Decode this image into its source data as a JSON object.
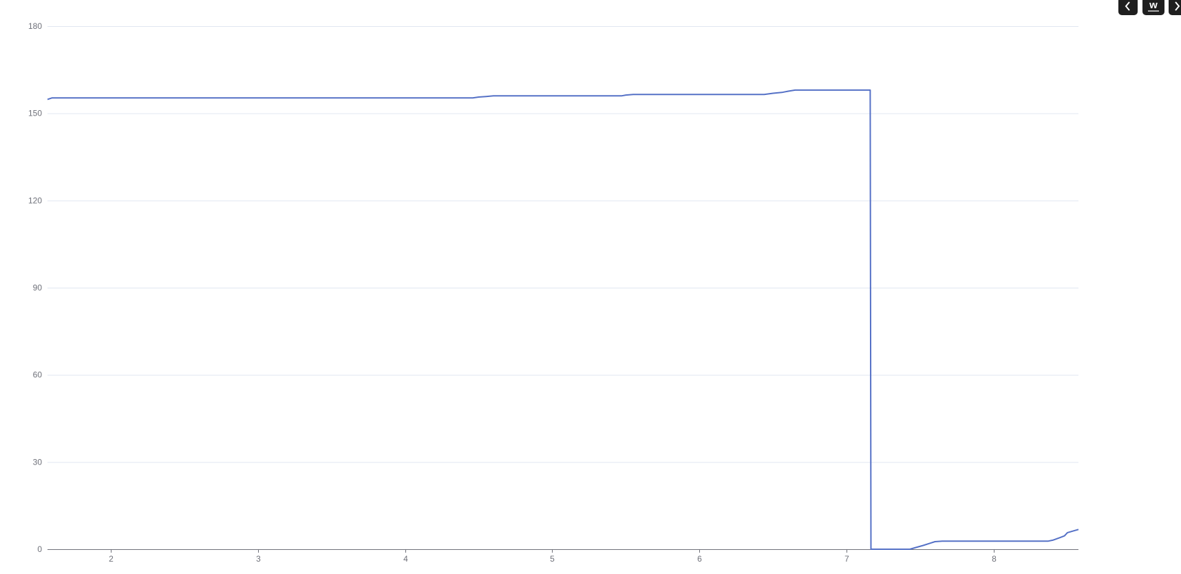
{
  "toolbar": {
    "buttons": [
      {
        "icon": "chevron-left-icon"
      },
      {
        "label": "w"
      },
      {
        "icon": "chevron-right-icon"
      }
    ]
  },
  "colors": {
    "series": "#5470c6",
    "grid": "#e0e6f1",
    "axis": "#6e7079"
  },
  "chart_data": {
    "type": "line",
    "title": "",
    "xlabel": "",
    "ylabel": "",
    "xlim": [
      1.57,
      8.575
    ],
    "ylim": [
      0,
      180
    ],
    "x_ticks": [
      2,
      3,
      4,
      5,
      6,
      7,
      8
    ],
    "y_ticks": [
      0,
      30,
      60,
      90,
      120,
      150,
      180
    ],
    "grid": "horizontal",
    "legend": "none",
    "series": [
      {
        "x": [
          1.57,
          1.6,
          2.0,
          3.0,
          4.0,
          4.46,
          4.5,
          4.55,
          4.6,
          5.0,
          5.47,
          5.5,
          5.55,
          6.0,
          6.44,
          6.5,
          6.56,
          6.6,
          6.65,
          7.0,
          7.16,
          7.165,
          7.3,
          7.43,
          7.47,
          7.52,
          7.57,
          7.6,
          7.65,
          8.0,
          8.37,
          8.4,
          8.45,
          8.48,
          8.5,
          8.54,
          8.575
        ],
        "y": [
          154.8,
          155.3,
          155.3,
          155.3,
          155.3,
          155.3,
          155.6,
          155.8,
          156.0,
          156.0,
          156.0,
          156.3,
          156.5,
          156.5,
          156.5,
          156.9,
          157.2,
          157.6,
          158.0,
          158.0,
          158.0,
          0,
          0,
          0,
          0.6,
          1.3,
          2.1,
          2.6,
          2.8,
          2.8,
          2.8,
          3.1,
          4.0,
          4.6,
          5.7,
          6.3,
          6.8
        ]
      }
    ]
  }
}
